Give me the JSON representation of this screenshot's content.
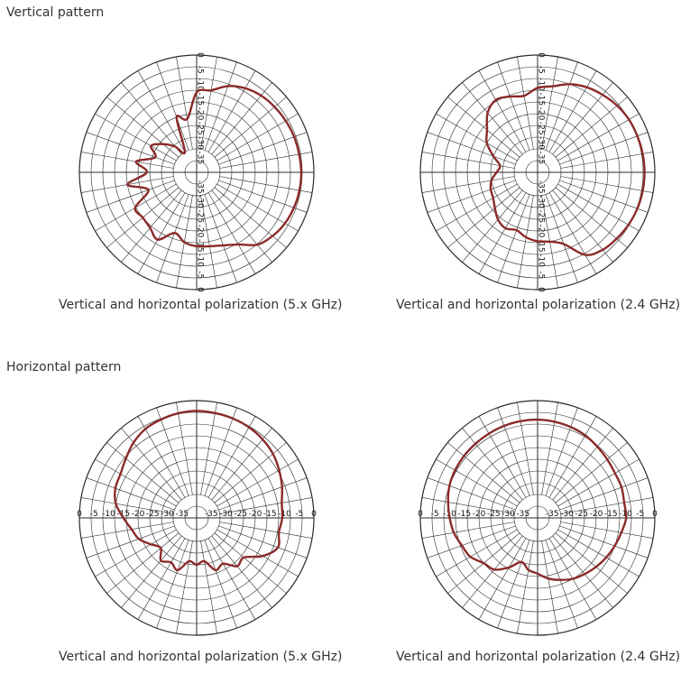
{
  "sections": [
    {
      "title": "Vertical pattern"
    },
    {
      "title": "Horizontal pattern"
    }
  ],
  "colors": {
    "trace": "#8b2a2a",
    "grid": "#2b2b2b"
  },
  "chart_data": [
    {
      "type": "polar",
      "section": "Vertical pattern",
      "caption": "Vertical and horizontal polarization (5.x GHz)",
      "r_ticks": [
        "0",
        "-5",
        "-10",
        "-15",
        "-20",
        "-25",
        "-30",
        "-35"
      ],
      "r_min": -40,
      "r_max": 0,
      "tick_orientation": "vertical",
      "series": [
        {
          "angles_deg": [
            0,
            10,
            20,
            30,
            40,
            50,
            60,
            70,
            80,
            90,
            100,
            110,
            120,
            130,
            140,
            150,
            160,
            170,
            180,
            190,
            200,
            210,
            220,
            230,
            240,
            250,
            260,
            270,
            280,
            290,
            300,
            310,
            320,
            330,
            340,
            350
          ],
          "gain_db": [
            -12.7,
            -11.6,
            -8.7,
            -6.9,
            -5.8,
            -5.3,
            -4.9,
            -4.6,
            -4.5,
            -4.3,
            -4.4,
            -4.7,
            -5.2,
            -6.2,
            -7.8,
            -11.6,
            -13.5,
            -14.4,
            -14.8,
            -15.8,
            -18,
            -13.5,
            -15.3,
            -16,
            -15.8,
            -22.5,
            -16,
            -23,
            -19,
            -25,
            -22,
            -25,
            -28.5,
            -32,
            -20,
            -21.5
          ]
        }
      ]
    },
    {
      "type": "polar",
      "section": "Vertical pattern",
      "caption": "Vertical and horizontal polarization (2.4 GHz)",
      "r_ticks": [
        "0",
        "-5",
        "-10",
        "-15",
        "-20",
        "-25",
        "-30",
        "-35"
      ],
      "r_min": -40,
      "r_max": 0,
      "tick_orientation": "vertical",
      "series": [
        {
          "angles_deg": [
            0,
            10,
            20,
            30,
            40,
            50,
            60,
            70,
            80,
            90,
            100,
            110,
            120,
            130,
            140,
            150,
            160,
            170,
            180,
            190,
            200,
            210,
            220,
            230,
            240,
            250,
            260,
            270,
            280,
            290,
            300,
            310,
            320,
            330,
            340,
            350
          ],
          "gain_db": [
            -11.2,
            -10.2,
            -8,
            -6.5,
            -5.5,
            -4.6,
            -4,
            -3.8,
            -3.6,
            -3.5,
            -3.6,
            -3.8,
            -4.2,
            -4.8,
            -5.5,
            -7.5,
            -14,
            -16,
            -16.5,
            -17.5,
            -19,
            -18,
            -19,
            -21,
            -22.5,
            -23,
            -24,
            -26,
            -27,
            -24,
            -20,
            -17.5,
            -13.5,
            -11.5,
            -12.5,
            -13.5
          ]
        }
      ]
    },
    {
      "type": "polar",
      "section": "Horizontal pattern",
      "caption": "Vertical and horizontal polarization (5.x GHz)",
      "r_ticks": [
        "0",
        "-5",
        "-10",
        "-15",
        "-20",
        "-25",
        "-30",
        "-35"
      ],
      "r_min": -40,
      "r_max": 0,
      "tick_orientation": "horizontal",
      "series": [
        {
          "angles_deg": [
            0,
            10,
            20,
            30,
            40,
            50,
            60,
            70,
            80,
            90,
            100,
            110,
            120,
            130,
            140,
            150,
            160,
            170,
            180,
            190,
            200,
            210,
            220,
            230,
            240,
            250,
            260,
            270,
            280,
            290,
            300,
            310,
            320,
            330,
            340,
            350
          ],
          "gain_db": [
            -3.5,
            -3.7,
            -3.9,
            -4.3,
            -5,
            -6,
            -7.5,
            -9,
            -10.5,
            -10.8,
            -11.5,
            -10.5,
            -14,
            -19,
            -18.5,
            -22,
            -21,
            -25,
            -24,
            -25,
            -21,
            -22.5,
            -21,
            -24,
            -22,
            -19,
            -17.5,
            -15,
            -12,
            -10.5,
            -10,
            -8.5,
            -6.5,
            -5,
            -4.3,
            -3.8
          ]
        }
      ]
    },
    {
      "type": "polar",
      "section": "Horizontal pattern",
      "caption": "Vertical and horizontal polarization (2.4 GHz)",
      "r_ticks": [
        "0",
        "-5",
        "-10",
        "-15",
        "-20",
        "-25",
        "-30",
        "-35"
      ],
      "r_min": -40,
      "r_max": 0,
      "tick_orientation": "horizontal",
      "series": [
        {
          "angles_deg": [
            0,
            10,
            20,
            30,
            40,
            50,
            60,
            70,
            80,
            90,
            100,
            110,
            120,
            130,
            140,
            150,
            160,
            170,
            180,
            190,
            200,
            210,
            220,
            230,
            240,
            250,
            260,
            270,
            280,
            290,
            300,
            310,
            320,
            330,
            340,
            350
          ],
          "gain_db": [
            -6.5,
            -6.7,
            -7,
            -7.5,
            -8.3,
            -9,
            -9.5,
            -9.5,
            -10,
            -9.8,
            -11,
            -12,
            -13,
            -14,
            -15,
            -16,
            -17.5,
            -19,
            -21,
            -22,
            -24,
            -20.5,
            -17,
            -16,
            -13.5,
            -12.5,
            -11,
            -10,
            -9,
            -8,
            -7.5,
            -7.2,
            -7,
            -6.8,
            -6.6,
            -6.5
          ]
        }
      ]
    }
  ]
}
